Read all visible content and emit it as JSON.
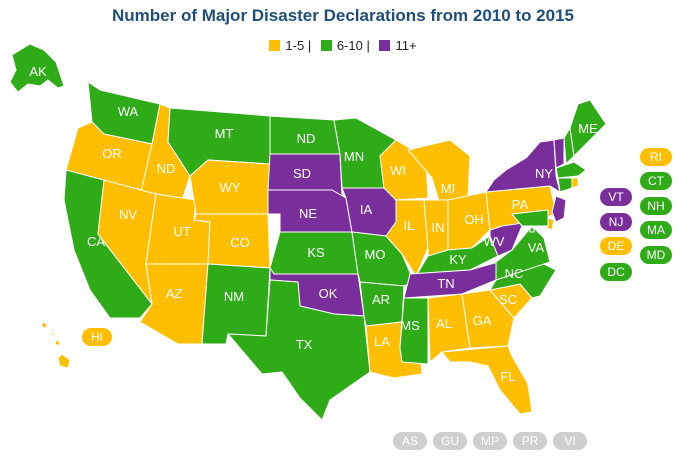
{
  "title": "Number of Major Disaster Declarations from 2010 to 2015",
  "colors": {
    "low": "#ffbf00",
    "mid": "#2eab17",
    "high": "#7a2e9b",
    "territory": "#cfcfcf"
  },
  "legend": [
    {
      "label": "1-5 |",
      "color": "#ffbf00"
    },
    {
      "label": "6-10 |",
      "color": "#2eab17"
    },
    {
      "label": "11+",
      "color": "#7a2e9b"
    }
  ],
  "states": {
    "AK": "mid",
    "HI": "low",
    "WA": "mid",
    "OR": "low",
    "ID": "low",
    "CA": "mid",
    "NV": "low",
    "UT": "low",
    "AZ": "low",
    "MT": "mid",
    "WY": "low",
    "CO": "low",
    "NM": "mid",
    "ND": "mid",
    "SD": "high",
    "NE": "high",
    "KS": "mid",
    "OK": "high",
    "TX": "mid",
    "MN": "mid",
    "IA": "high",
    "MO": "mid",
    "AR": "mid",
    "LA": "low",
    "WI": "low",
    "IL": "low",
    "MI": "low",
    "IN": "low",
    "OH": "low",
    "KY": "mid",
    "TN": "high",
    "MS": "mid",
    "AL": "low",
    "GA": "low",
    "FL": "low",
    "SC": "low",
    "NC": "mid",
    "VA": "mid",
    "WV": "high",
    "PA": "low",
    "NY": "high",
    "ME": "mid",
    "VT": "high",
    "NH": "mid",
    "MA": "mid",
    "RI": "low",
    "CT": "mid",
    "NJ": "high",
    "DE": "low",
    "MD": "mid",
    "DC": "mid"
  },
  "map_labels": {
    "AK": "AK",
    "WA": "WA",
    "OR": "OR",
    "ID": "ND",
    "CA": "CA",
    "NV": "NV",
    "UT": "UT",
    "AZ": "AZ",
    "MT": "MT",
    "WY": "WY",
    "CO": "CO",
    "NM": "NM",
    "ND": "ND",
    "SD": "SD",
    "NE": "NE",
    "KS": "KS",
    "OK": "OK",
    "TX": "TX",
    "MN": "MN",
    "IA": "IA",
    "MO": "MO",
    "AR": "AR",
    "LA": "LA",
    "WI": "WI",
    "IL": "IL",
    "MI": "MI",
    "IN": "IN",
    "OH": "OH",
    "KY": "KY",
    "TN": "TN",
    "MS": "MS",
    "AL": "AL",
    "GA": "GA",
    "FL": "FL",
    "SC": "SC",
    "NC": "NC",
    "VA": "VA",
    "WV": "WV",
    "PA": "PA",
    "NY": "NY",
    "ME": "ME"
  },
  "pills": {
    "HI": "HI",
    "RI": "RI",
    "CT": "CT",
    "VT": "VT",
    "NH": "NH",
    "NJ": "NJ",
    "MA": "MA",
    "DE": "DE",
    "MD": "MD",
    "DC": "DC"
  },
  "territories": [
    "AS",
    "GU",
    "MP",
    "PR",
    "VI"
  ]
}
